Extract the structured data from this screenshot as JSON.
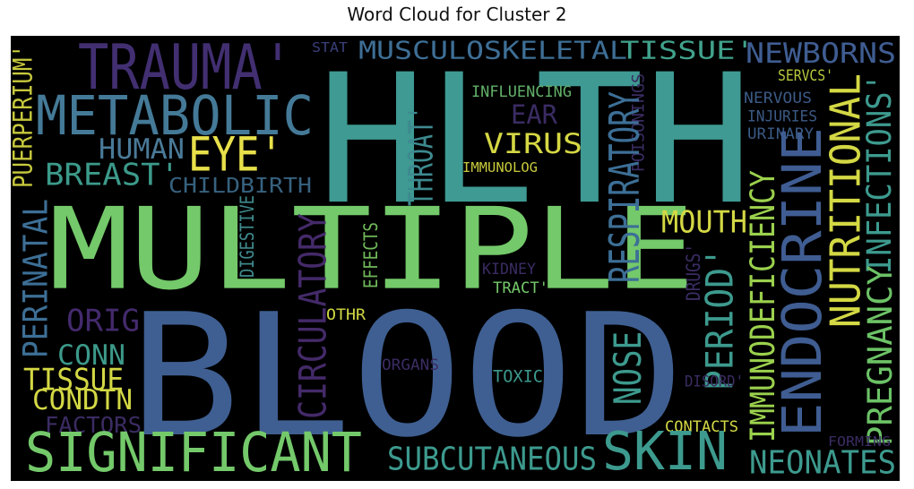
{
  "chart_data": {
    "type": "wordcloud",
    "title": "Word Cloud for Cluster 2",
    "background": "#000000",
    "words": [
      {
        "text": "HLTH",
        "color": "#3e9a93"
      },
      {
        "text": "MULTIPLE",
        "color": "#74c96a"
      },
      {
        "text": "BLOOD",
        "color": "#3f5f92"
      },
      {
        "text": "TRAUMA'",
        "color": "#422f71"
      },
      {
        "text": "METABOLIC",
        "color": "#447a97"
      },
      {
        "text": "MUSCULOSKELETAL",
        "color": "#3e6f96"
      },
      {
        "text": "TISSUE'",
        "color": "#41a28c"
      },
      {
        "text": "NEWBORNS",
        "color": "#3f5d92"
      },
      {
        "text": "EYE'",
        "color": "#e8e04a"
      },
      {
        "text": "HUMAN",
        "color": "#4a7a98"
      },
      {
        "text": "BREAST'",
        "color": "#3c9a8a"
      },
      {
        "text": "CHILDBIRTH",
        "color": "#37627f"
      },
      {
        "text": "PUERPERIUM'",
        "color": "#c8c93d"
      },
      {
        "text": "STAT",
        "color": "#3b3f7a"
      },
      {
        "text": "INFLUENCING",
        "color": "#62b069"
      },
      {
        "text": "EAR",
        "color": "#3b2c63"
      },
      {
        "text": "VIRUS",
        "color": "#d5d744"
      },
      {
        "text": "THROAT'",
        "color": "#3d8a8f"
      },
      {
        "text": "IMMUNOLOG",
        "color": "#c8c93d"
      },
      {
        "text": "POISONINGS",
        "color": "#3b2c63"
      },
      {
        "text": "RESPIRATORY",
        "color": "#3d6f96"
      },
      {
        "text": "SERVCS'",
        "color": "#b6c83d"
      },
      {
        "text": "NERVOUS",
        "color": "#3b5a85"
      },
      {
        "text": "INJURIES",
        "color": "#3b5a85"
      },
      {
        "text": "URINARY",
        "color": "#3b5a85"
      },
      {
        "text": "NUTRITIONAL",
        "color": "#d3d844"
      },
      {
        "text": "INFECTIONS'",
        "color": "#3d9a8e"
      },
      {
        "text": "ENDOCRINE",
        "color": "#3f5d92"
      },
      {
        "text": "PREGNANCY",
        "color": "#6cc266"
      },
      {
        "text": "IMMUNODEFICIENCY",
        "color": "#9bd14d"
      },
      {
        "text": "PERINATAL",
        "color": "#3d6f96"
      },
      {
        "text": "DIGESTIVE",
        "color": "#3f8a8c"
      },
      {
        "text": "EFFECTS",
        "color": "#6fb75a"
      },
      {
        "text": "CIRCULATORY",
        "color": "#442a69"
      },
      {
        "text": "MOUTH",
        "color": "#d3d844"
      },
      {
        "text": "DRUGS'",
        "color": "#3b2c63"
      },
      {
        "text": "KIDNEY",
        "color": "#3b2c63"
      },
      {
        "text": "TRACT'",
        "color": "#74c96a"
      },
      {
        "text": "PERIOD'",
        "color": "#3d9a8e"
      },
      {
        "text": "ORIG",
        "color": "#432a6c"
      },
      {
        "text": "CONN",
        "color": "#3c9a8a"
      },
      {
        "text": "OTHR",
        "color": "#d3d844"
      },
      {
        "text": "TISSUE",
        "color": "#d3d844"
      },
      {
        "text": "CONDTN",
        "color": "#d3d844"
      },
      {
        "text": "FACTORS",
        "color": "#3b2c63"
      },
      {
        "text": "ORGANS",
        "color": "#3b2c63"
      },
      {
        "text": "TOXIC",
        "color": "#3d9a8e"
      },
      {
        "text": "NOSE",
        "color": "#3d9a8e"
      },
      {
        "text": "DISORD'",
        "color": "#3b2c63"
      },
      {
        "text": "CONTACTS",
        "color": "#d3d844"
      },
      {
        "text": "FORMING",
        "color": "#3b2c63"
      },
      {
        "text": "SIGNIFICANT",
        "color": "#74c96a"
      },
      {
        "text": "SUBCUTANEOUS",
        "color": "#3d9a8e"
      },
      {
        "text": "SKIN",
        "color": "#3d9a8e"
      },
      {
        "text": "NEONATES",
        "color": "#3d9a8e"
      }
    ]
  }
}
